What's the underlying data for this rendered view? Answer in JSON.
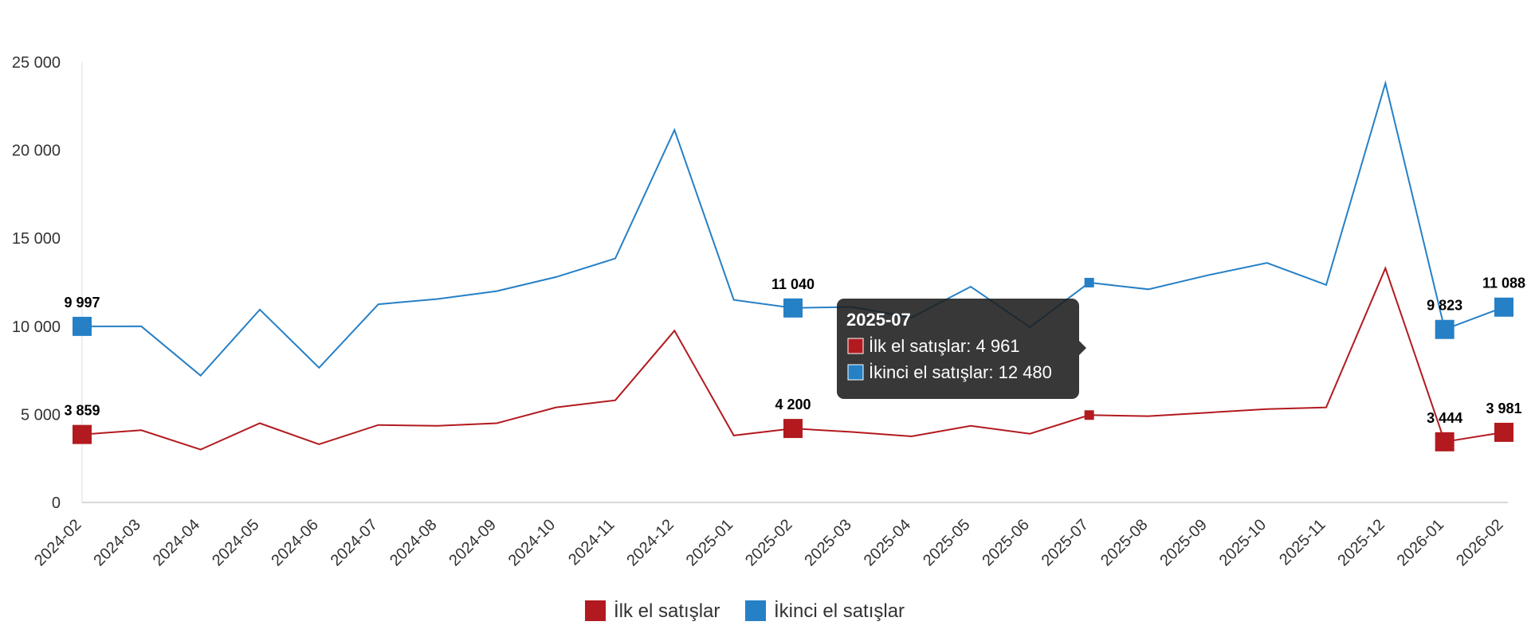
{
  "chart_data": {
    "type": "line",
    "categories": [
      "2024-02",
      "2024-03",
      "2024-04",
      "2024-05",
      "2024-06",
      "2024-07",
      "2024-08",
      "2024-09",
      "2024-10",
      "2024-11",
      "2024-12",
      "2025-01",
      "2025-02",
      "2025-03",
      "2025-04",
      "2025-05",
      "2025-06",
      "2025-07",
      "2025-08",
      "2025-09",
      "2025-10",
      "2025-11",
      "2025-12",
      "2026-01",
      "2026-02"
    ],
    "series": [
      {
        "name": "İlk el satışlar",
        "color": "#b21a1f",
        "values": [
          3859,
          4100,
          3000,
          4500,
          3300,
          4400,
          4350,
          4500,
          5400,
          5800,
          9750,
          3800,
          4200,
          4000,
          3750,
          4350,
          3900,
          4961,
          4900,
          5100,
          5300,
          5400,
          13300,
          3444,
          3981
        ],
        "labeled_points": [
          {
            "index": 0,
            "label": "3 859"
          },
          {
            "index": 12,
            "label": "4 200"
          },
          {
            "index": 23,
            "label": "3 444"
          },
          {
            "index": 24,
            "label": "3 981"
          }
        ]
      },
      {
        "name": "İkinci el satışlar",
        "color": "#2680c6",
        "values": [
          9997,
          10000,
          7200,
          10950,
          7650,
          11250,
          11550,
          12000,
          12800,
          13850,
          21150,
          11500,
          11040,
          11100,
          10500,
          12250,
          9950,
          12480,
          12100,
          12900,
          13600,
          12350,
          23800,
          9823,
          11088
        ],
        "labeled_points": [
          {
            "index": 0,
            "label": "9 997"
          },
          {
            "index": 12,
            "label": "11 040"
          },
          {
            "index": 23,
            "label": "9 823"
          },
          {
            "index": 24,
            "label": "11 088"
          }
        ]
      }
    ],
    "ylim": [
      0,
      25000
    ],
    "yticks": [
      {
        "value": 0,
        "label": "0"
      },
      {
        "value": 5000,
        "label": "5 000"
      },
      {
        "value": 10000,
        "label": "10 000"
      },
      {
        "value": 15000,
        "label": "15 000"
      },
      {
        "value": 20000,
        "label": "20 000"
      },
      {
        "value": 25000,
        "label": "25 000"
      }
    ],
    "title": "",
    "xlabel": "",
    "ylabel": "",
    "grid": false,
    "legend_position": "bottom-center",
    "tooltip": {
      "category_index": 17,
      "title": "2025-07",
      "lines": [
        {
          "series": 0,
          "text": "İlk el satışlar: 4 961"
        },
        {
          "series": 1,
          "text": "İkinci el satışlar: 12 480"
        }
      ]
    }
  }
}
